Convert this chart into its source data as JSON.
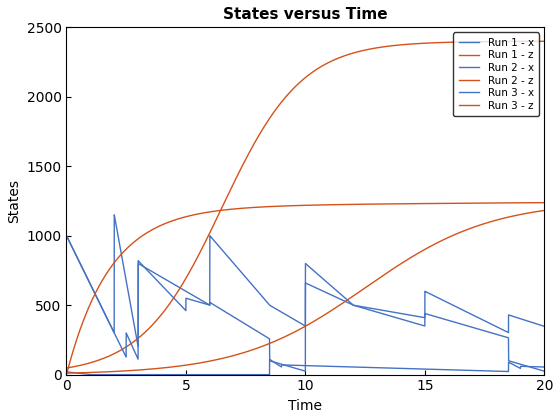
{
  "title": "States versus Time",
  "xlabel": "Time",
  "ylabel": "States",
  "xlim": [
    0,
    20
  ],
  "ylim": [
    0,
    2500
  ],
  "legend_labels": [
    "Run 1 - x",
    "Run 1 - z",
    "Run 2 - x",
    "Run 2 - z",
    "Run 3 - x",
    "Run 3 - z"
  ],
  "color_x": "#4472C4",
  "color_z": "#D4521A",
  "line_width": 1.0,
  "background_color": "#ffffff",
  "xticks": [
    0,
    5,
    10,
    15,
    20
  ],
  "yticks": [
    0,
    500,
    1000,
    1500,
    2000,
    2500
  ]
}
